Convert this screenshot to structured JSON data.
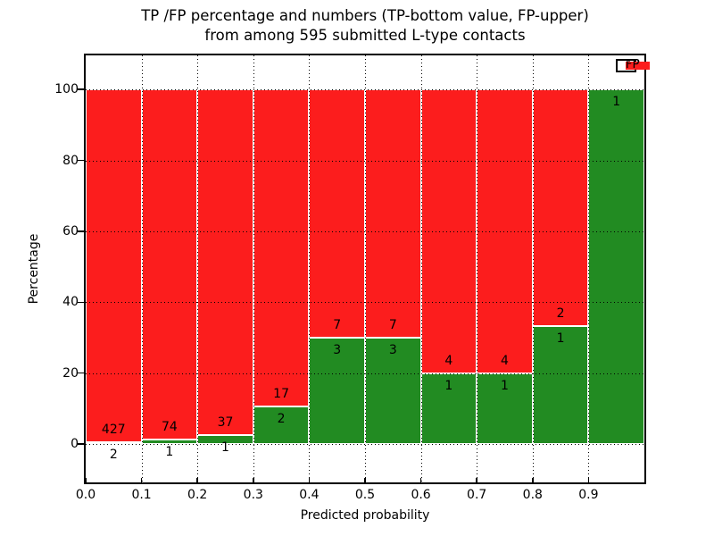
{
  "figure": {
    "title_line1": "TP /FP percentage and numbers (TP-bottom value, FP-upper)",
    "title_line2": "from among 595 submitted L-type contacts"
  },
  "chart_data": {
    "type": "bar",
    "stacked": true,
    "title": "TP /FP percentage and numbers (TP-bottom value, FP-upper) from among 595 submitted L-type contacts",
    "xlabel": "Predicted probability",
    "ylabel": "Percentage",
    "total_submitted_contacts": 595,
    "xlim": [
      0.0,
      1.0
    ],
    "ylim": [
      -10.8,
      109.6
    ],
    "bin_edges": [
      0.0,
      0.1,
      0.2,
      0.3,
      0.4,
      0.5,
      0.6,
      0.7,
      0.8,
      0.9,
      1.0
    ],
    "x_tick_values": [
      0.0,
      0.1,
      0.2,
      0.3,
      0.4,
      0.5,
      0.6,
      0.7,
      0.8,
      0.9
    ],
    "x_tick_labels": [
      "0.0",
      "0.1",
      "0.2",
      "0.3",
      "0.4",
      "0.5",
      "0.6",
      "0.7",
      "0.8",
      "0.9"
    ],
    "y_tick_values": [
      0,
      20,
      40,
      60,
      80,
      100
    ],
    "y_tick_labels": [
      "0",
      "20",
      "40",
      "60",
      "80",
      "100"
    ],
    "grid": "dotted",
    "legend_position": "upper right",
    "series": [
      {
        "name": "TP",
        "color": "#228b22",
        "counts": [
          2,
          1,
          1,
          2,
          3,
          3,
          1,
          1,
          1,
          1
        ]
      },
      {
        "name": "FP",
        "color": "#fc1d1d",
        "counts": [
          427,
          74,
          37,
          17,
          7,
          7,
          4,
          4,
          2,
          0
        ]
      }
    ],
    "tp_percent_per_bin": [
      0.47,
      1.33,
      2.63,
      10.53,
      30.0,
      30.0,
      20.0,
      20.0,
      33.33,
      100.0
    ],
    "annotation_offset_percent": 3.5
  }
}
